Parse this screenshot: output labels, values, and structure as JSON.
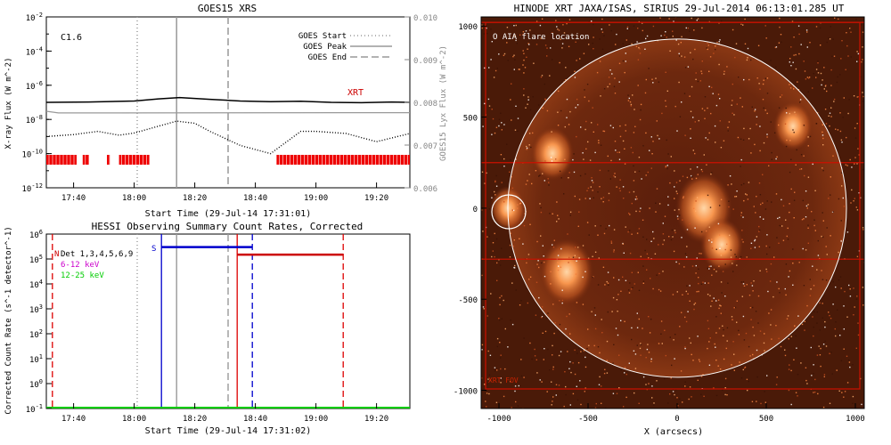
{
  "chart_data": [
    {
      "type": "line",
      "title": "GOES15 XRS",
      "xlabel": "Start Time (29-Jul-14 17:31:01)",
      "ylabel": "X-ray Flux (W m^-2)",
      "ylabel_right": "GOES15 Lyx Flux (W m^-2)",
      "class_label": "C1.6",
      "xlim": [
        "17:31",
        "19:31"
      ],
      "x_ticks": [
        "17:40",
        "18:00",
        "18:20",
        "18:40",
        "19:00",
        "19:20"
      ],
      "y_scale": "log",
      "ylim": [
        1e-12,
        0.01
      ],
      "y_ticks": [
        "10^-12",
        "10^-10",
        "10^-8",
        "10^-6",
        "10^-4",
        "10^-2"
      ],
      "ylim_right": [
        0.006,
        0.01
      ],
      "y_ticks_right": [
        "0.006",
        "0.007",
        "0.008",
        "0.009",
        "0.010"
      ],
      "legend": [
        {
          "label": "GOES Start",
          "style": "dotted",
          "color": "#999999"
        },
        {
          "label": "GOES Peak",
          "style": "solid",
          "color": "#999999"
        },
        {
          "label": "GOES End",
          "style": "dashed",
          "color": "#999999"
        }
      ],
      "legend_position": "top-right",
      "markers": {
        "start": "18:01",
        "peak": "18:14",
        "end": "18:31"
      },
      "xrt_label": "XRT",
      "series": [
        {
          "style": "solid",
          "color": "#000000",
          "x": [
            "17:31",
            "17:45",
            "18:00",
            "18:08",
            "18:15",
            "18:25",
            "18:35",
            "18:45",
            "18:55",
            "19:05",
            "19:15",
            "19:25",
            "19:31"
          ],
          "values": [
            1e-07,
            1.05e-07,
            1.2e-07,
            1.6e-07,
            1.9e-07,
            1.5e-07,
            1.2e-07,
            1.1e-07,
            1.15e-07,
            1e-07,
            9.5e-08,
            1.05e-07,
            1e-07
          ]
        },
        {
          "style": "solid",
          "color": "#999999",
          "x": [
            "17:31",
            "17:35",
            "19:31"
          ],
          "values": [
            3e-08,
            2.4e-08,
            2.5e-08
          ]
        },
        {
          "style": "dotted",
          "color": "#000000",
          "x": [
            "17:31",
            "17:40",
            "17:48",
            "17:55",
            "18:00",
            "18:08",
            "18:14",
            "18:20",
            "18:25",
            "18:35",
            "18:45",
            "18:55",
            "19:00",
            "19:10",
            "19:20",
            "19:31"
          ],
          "values": [
            1e-09,
            1.3e-09,
            2e-09,
            1.2e-09,
            1.6e-09,
            4e-09,
            8e-09,
            6e-09,
            2e-09,
            3e-10,
            1e-10,
            2e-09,
            2e-09,
            1.5e-09,
            5e-10,
            1.5e-09
          ]
        }
      ],
      "xrt_coverage": [
        [
          "17:31",
          "17:41"
        ],
        [
          "17:43",
          "17:45"
        ],
        [
          "17:51",
          "17:52"
        ],
        [
          "17:55",
          "18:05"
        ],
        [
          "18:47",
          "19:31"
        ]
      ]
    },
    {
      "type": "line",
      "title": "HESSI Observing Summary Count Rates, Corrected",
      "xlabel": "Start Time (29-Jul-14 17:31:02)",
      "ylabel": "Corrected Count Rate (s^-1 detector^-1)",
      "xlim": [
        "17:31",
        "19:31"
      ],
      "x_ticks": [
        "17:40",
        "18:00",
        "18:20",
        "18:40",
        "19:00",
        "19:20"
      ],
      "y_scale": "log",
      "ylim": [
        0.1,
        1000000.0
      ],
      "y_ticks": [
        "10^-1",
        "10^0",
        "10^1",
        "10^2",
        "10^3",
        "10^4",
        "10^5",
        "10^6"
      ],
      "legend": [
        {
          "label": "Det 1,3,4,5,6,9",
          "color": "#000000"
        },
        {
          "label": "6-12 keV",
          "color": "#cc00cc"
        },
        {
          "label": "12-25 keV",
          "color": "#00cc00"
        }
      ],
      "legend_position": "top-left",
      "flag_labels": {
        "n": "N",
        "s": "S"
      },
      "blue_markers": [
        "18:09",
        "18:39"
      ],
      "red_markers": [
        "17:33",
        "18:34",
        "19:09"
      ],
      "gray_markers": [
        "18:01",
        "18:14",
        "18:31"
      ],
      "series": [
        {
          "name": "S",
          "color": "#0000cc",
          "x": [
            "18:09",
            "18:39"
          ],
          "values": [
            300000,
            300000
          ]
        },
        {
          "name": "N",
          "color": "#cc0000",
          "x": [
            "18:34",
            "19:09"
          ],
          "values": [
            150000,
            150000
          ]
        },
        {
          "name": "12-25 keV",
          "color": "#00cc00",
          "x": [
            "17:31",
            "19:31"
          ],
          "values": [
            0.1,
            0.1
          ]
        }
      ]
    },
    {
      "type": "heatmap",
      "title": "HINODE XRT JAXA/ISAS, SIRIUS 29-Jul-2014 06:13:01.285 UT",
      "xlabel": "X (arcsecs)",
      "ylabel": "",
      "xlim": [
        -1100,
        1050
      ],
      "ylim": [
        -1100,
        1050
      ],
      "x_ticks": [
        "-1000",
        "-500",
        "0",
        "500",
        "1000"
      ],
      "y_ticks": [
        "-1000",
        "-500",
        "0",
        "500",
        "1000"
      ],
      "annotation": "O AIA flare location",
      "corner_label": "XRT FOV",
      "solar_limb": {
        "cx": 0,
        "cy": 0,
        "r": 950
      },
      "flare_circle": {
        "cx": -945,
        "cy": -20,
        "r": 95
      },
      "fov_lines_y": [
        1020,
        250,
        -280
      ],
      "active_regions": [
        {
          "x": -950,
          "y": 0,
          "r": 100
        },
        {
          "x": -700,
          "y": 300,
          "r": 120
        },
        {
          "x": -620,
          "y": -350,
          "r": 150
        },
        {
          "x": 150,
          "y": 0,
          "r": 160
        },
        {
          "x": 250,
          "y": -200,
          "r": 120
        },
        {
          "x": 650,
          "y": 450,
          "r": 110
        }
      ]
    }
  ]
}
